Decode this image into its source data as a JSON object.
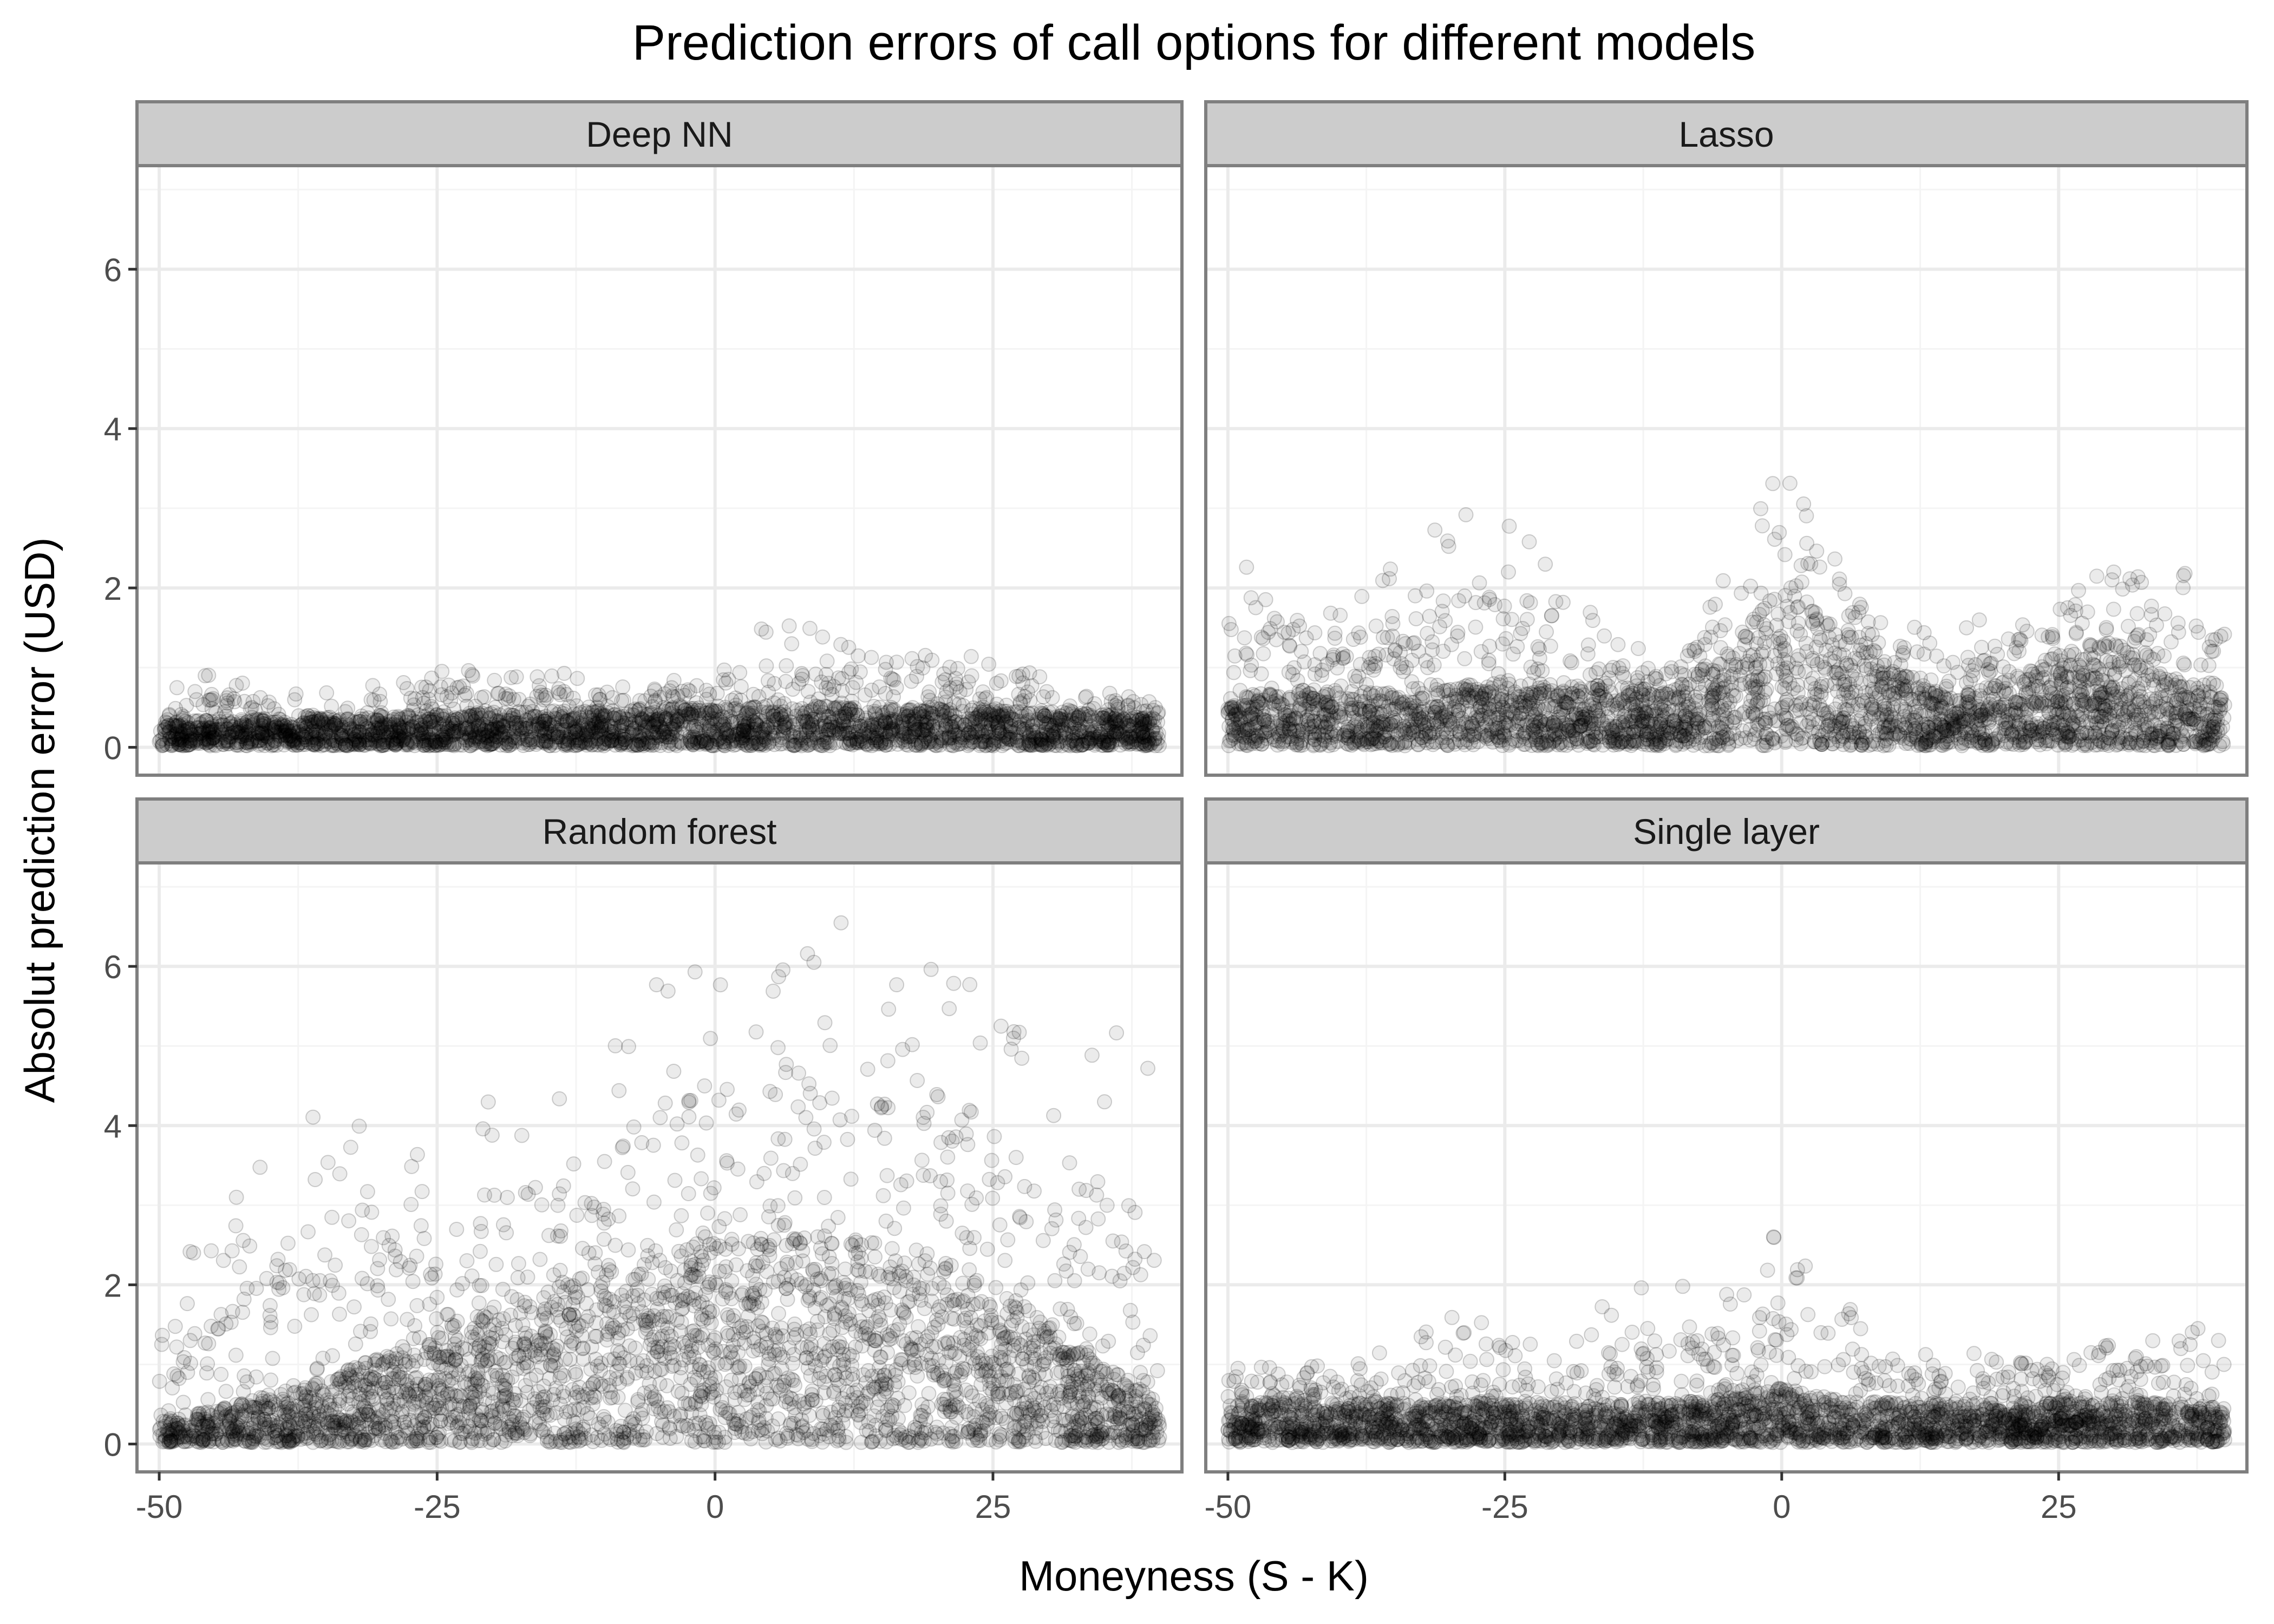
{
  "chart_data": {
    "type": "scatter",
    "title": "Prediction errors of call options for different models",
    "xlabel": "Moneyness (S - K)",
    "ylabel": "Absolut prediction error (USD)",
    "xlim": [
      -52,
      42
    ],
    "ylim": [
      -0.35,
      7.3
    ],
    "x_ticks": [
      -50,
      -25,
      0,
      25
    ],
    "y_ticks": [
      0,
      2,
      4,
      6
    ],
    "grid": true,
    "point_color": "#000000",
    "point_alpha": 0.08,
    "panel_border_color": "#7f7f7f",
    "strip_fill": "#cccccc",
    "grid_major_color": "#ebebeb",
    "panels": [
      {
        "name": "Deep NN",
        "profile_x": [
          -50,
          -45,
          -40,
          -35,
          -30,
          -25,
          -20,
          -15,
          -10,
          -5,
          0,
          5,
          10,
          15,
          20,
          25,
          30,
          35,
          40
        ],
        "core_max": [
          0.3,
          0.32,
          0.34,
          0.36,
          0.38,
          0.4,
          0.42,
          0.44,
          0.45,
          0.46,
          0.48,
          0.5,
          0.5,
          0.49,
          0.48,
          0.46,
          0.44,
          0.4,
          0.35
        ],
        "outlier_max": [
          0.7,
          0.95,
          0.85,
          0.7,
          0.8,
          1.1,
          0.9,
          0.95,
          0.9,
          0.95,
          1.0,
          1.8,
          1.4,
          1.3,
          1.4,
          1.1,
          0.9,
          0.75,
          0.6
        ]
      },
      {
        "name": "Lasso",
        "profile_x": [
          -50,
          -45,
          -40,
          -35,
          -30,
          -25,
          -20,
          -15,
          -10,
          -5,
          0,
          5,
          10,
          15,
          20,
          25,
          30,
          35,
          40
        ],
        "core_max": [
          0.6,
          0.7,
          0.7,
          0.7,
          0.75,
          0.8,
          0.8,
          0.75,
          0.7,
          1.2,
          2.0,
          1.6,
          1.0,
          0.6,
          0.8,
          1.2,
          1.3,
          0.9,
          0.6
        ],
        "outlier_max": [
          2.6,
          2.3,
          2.0,
          2.3,
          2.9,
          3.0,
          2.2,
          1.3,
          1.2,
          2.2,
          3.7,
          2.5,
          1.6,
          1.4,
          1.9,
          2.2,
          2.2,
          2.3,
          2.1
        ]
      },
      {
        "name": "Random forest",
        "profile_x": [
          -50,
          -45,
          -40,
          -35,
          -30,
          -25,
          -20,
          -15,
          -10,
          -5,
          0,
          5,
          10,
          15,
          20,
          25,
          30,
          35,
          40
        ],
        "core_max": [
          0.3,
          0.4,
          0.6,
          0.8,
          1.1,
          1.4,
          1.7,
          2.0,
          2.2,
          2.4,
          2.5,
          2.6,
          2.6,
          2.5,
          2.3,
          2.0,
          1.5,
          1.0,
          0.5
        ],
        "outlier_max": [
          2.2,
          2.9,
          3.7,
          4.7,
          4.0,
          3.7,
          4.4,
          4.6,
          5.0,
          5.9,
          6.0,
          6.4,
          6.8,
          6.9,
          6.6,
          5.5,
          4.9,
          6.0,
          4.6
        ]
      },
      {
        "name": "Single layer",
        "profile_x": [
          -50,
          -45,
          -40,
          -35,
          -30,
          -25,
          -20,
          -15,
          -10,
          -5,
          0,
          5,
          10,
          15,
          20,
          25,
          30,
          35,
          40
        ],
        "core_max": [
          0.5,
          0.5,
          0.5,
          0.5,
          0.5,
          0.5,
          0.5,
          0.5,
          0.5,
          0.55,
          0.7,
          0.55,
          0.5,
          0.5,
          0.5,
          0.5,
          0.5,
          0.5,
          0.45
        ],
        "outlier_max": [
          1.0,
          1.0,
          1.0,
          1.2,
          1.7,
          1.4,
          1.2,
          1.9,
          2.3,
          1.9,
          2.8,
          2.0,
          1.2,
          1.2,
          1.1,
          1.0,
          1.3,
          1.4,
          1.5
        ]
      }
    ]
  }
}
